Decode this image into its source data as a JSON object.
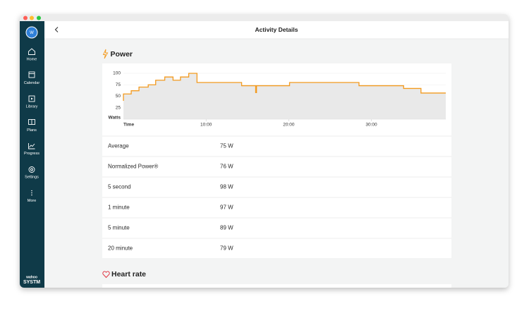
{
  "header": {
    "title": "Activity Details"
  },
  "sidebar": {
    "avatar": "W",
    "items": [
      "Home",
      "Calendar",
      "Library",
      "Plans",
      "Progress",
      "Settings",
      "More"
    ],
    "brand_small": "wahoo",
    "brand": "SYSTM"
  },
  "power": {
    "heading": "Power",
    "chart_data": {
      "type": "line",
      "y_label": "Watts",
      "x_label": "Time",
      "color": "#f39a1e",
      "x": [
        0,
        0,
        0.94,
        0.94,
        1.88,
        1.88,
        3,
        3,
        3.9,
        3.9,
        5,
        5,
        6,
        6,
        6.9,
        6.9,
        7.9,
        7.9,
        8.9,
        8.9,
        14.3,
        14.3,
        16,
        16,
        16.1,
        16.1,
        20.1,
        20.1,
        28.5,
        28.5,
        33.9,
        33.9,
        36,
        36,
        39
      ],
      "values": [
        40,
        55,
        55,
        62,
        62,
        70,
        70,
        75,
        75,
        85,
        85,
        92,
        92,
        85,
        85,
        92,
        92,
        100,
        100,
        80,
        80,
        73,
        73,
        58,
        58,
        73,
        73,
        80,
        80,
        73,
        73,
        67,
        67,
        57,
        57
      ],
      "xlim": [
        0,
        39
      ],
      "ylim": [
        0,
        100
      ],
      "yticks": [
        25,
        50,
        75,
        100
      ],
      "xticks": [
        {
          "value": 10,
          "label": "10:00"
        },
        {
          "value": 20,
          "label": "20:00"
        },
        {
          "value": 30,
          "label": "30:00"
        }
      ],
      "grid": true
    },
    "stats": [
      {
        "label": "Average",
        "value": "75 W"
      },
      {
        "label": "Normalized Power®",
        "value": "76 W"
      },
      {
        "label": "5 second",
        "value": "98 W"
      },
      {
        "label": "1 minute",
        "value": "97 W"
      },
      {
        "label": "5 minute",
        "value": "89 W"
      },
      {
        "label": "20 minute",
        "value": "79 W"
      }
    ]
  },
  "heart_rate": {
    "heading": "Heart rate"
  }
}
